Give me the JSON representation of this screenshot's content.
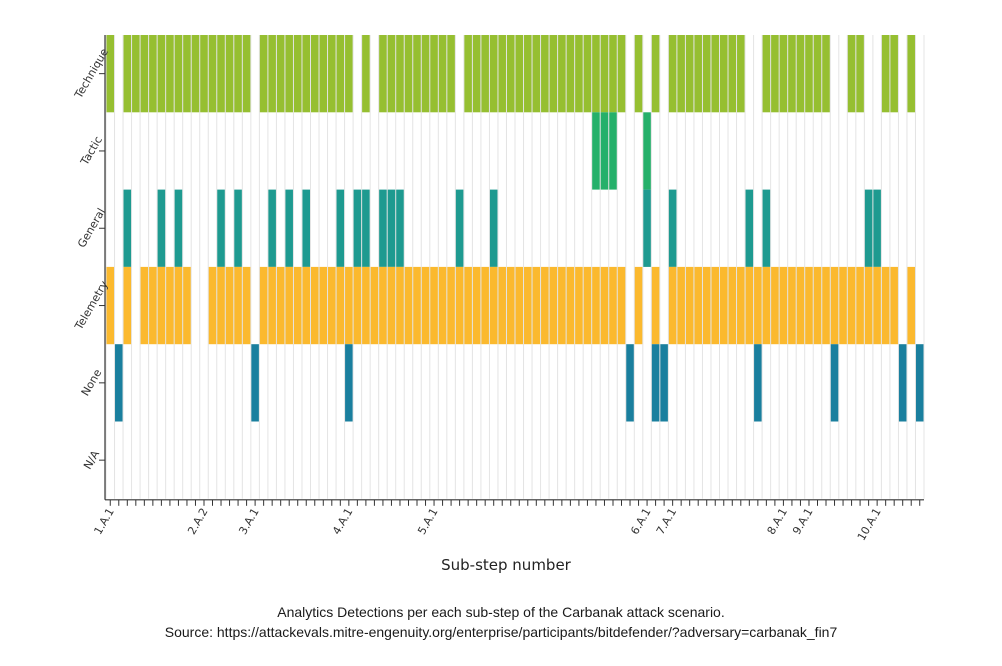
{
  "caption": {
    "line1": "Analytics Detections per each sub-step of the Carbanak attack scenario.",
    "line2": "Source: https://attackevals.mitre-engenuity.org/enterprise/participants/bitdefender/?adversary=carbanak_fin7"
  },
  "chart_data": {
    "type": "heatmap",
    "title": "",
    "xlabel": "Sub-step number",
    "ylabel": "",
    "substep_count": 96,
    "x_tick_labels": [
      {
        "index": 1,
        "label": "1.A.1"
      },
      {
        "index": 12,
        "label": "2.A.2"
      },
      {
        "index": 18,
        "label": "3.A.1"
      },
      {
        "index": 29,
        "label": "4.A.1"
      },
      {
        "index": 39,
        "label": "5.A.1"
      },
      {
        "index": 64,
        "label": "6.A.1"
      },
      {
        "index": 67,
        "label": "7.A.1"
      },
      {
        "index": 80,
        "label": "8.A.1"
      },
      {
        "index": 83,
        "label": "9.A.1"
      },
      {
        "index": 91,
        "label": "10.A.1"
      }
    ],
    "categories": [
      "Technique",
      "Tactic",
      "General",
      "Telemetry",
      "None",
      "N/A"
    ],
    "category_colors": {
      "Technique": "#96bf31",
      "Tactic": "#25b06a",
      "General": "#1e9a90",
      "Telemetry": "#fbb92e",
      "None": "#1a7f9e",
      "N/A": "#ffffff"
    },
    "grid": true,
    "series": [
      {
        "category": "Technique",
        "substeps": [
          1,
          3,
          4,
          5,
          6,
          7,
          8,
          9,
          10,
          11,
          12,
          13,
          14,
          15,
          16,
          17,
          19,
          20,
          21,
          22,
          23,
          24,
          25,
          26,
          27,
          28,
          29,
          31,
          33,
          34,
          35,
          36,
          37,
          38,
          39,
          40,
          41,
          43,
          44,
          45,
          46,
          47,
          48,
          49,
          50,
          51,
          52,
          53,
          54,
          55,
          56,
          57,
          58,
          59,
          60,
          61,
          63,
          65,
          67,
          68,
          69,
          70,
          71,
          72,
          73,
          74,
          75,
          78,
          79,
          80,
          81,
          82,
          83,
          84,
          85,
          88,
          89,
          92,
          93,
          95
        ]
      },
      {
        "category": "Tactic",
        "substeps": [
          58,
          59,
          60,
          64
        ]
      },
      {
        "category": "General",
        "substeps": [
          3,
          7,
          9,
          14,
          16,
          20,
          22,
          24,
          28,
          30,
          31,
          33,
          34,
          35,
          42,
          46,
          64,
          67,
          76,
          78,
          90,
          91
        ]
      },
      {
        "category": "Telemetry",
        "substeps": [
          1,
          3,
          5,
          6,
          7,
          8,
          9,
          10,
          13,
          14,
          15,
          16,
          17,
          19,
          20,
          21,
          22,
          23,
          24,
          25,
          26,
          27,
          28,
          29,
          30,
          31,
          32,
          33,
          34,
          35,
          36,
          37,
          38,
          39,
          40,
          41,
          42,
          43,
          44,
          45,
          46,
          47,
          48,
          49,
          50,
          51,
          52,
          53,
          54,
          55,
          56,
          57,
          58,
          59,
          60,
          61,
          63,
          65,
          67,
          68,
          69,
          70,
          71,
          72,
          73,
          74,
          75,
          76,
          77,
          78,
          79,
          80,
          81,
          82,
          83,
          84,
          85,
          86,
          87,
          88,
          89,
          90,
          91,
          92,
          93,
          95
        ]
      },
      {
        "category": "None",
        "substeps": [
          2,
          18,
          29,
          62,
          65,
          66,
          77,
          86,
          94,
          96
        ]
      },
      {
        "category": "N/A",
        "substeps": []
      }
    ]
  }
}
